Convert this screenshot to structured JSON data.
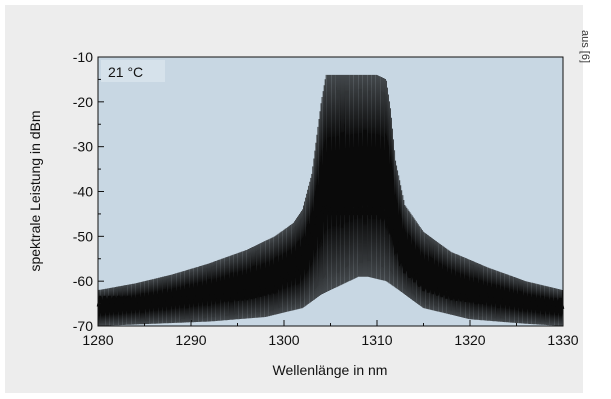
{
  "source_note": "aus [6]",
  "chart_data": {
    "type": "line",
    "title": "",
    "annotation": "21 °C",
    "xlabel": "Wellenlänge in nm",
    "ylabel": "spektrale Leistung in dBm",
    "xlim": [
      1280,
      1330
    ],
    "ylim": [
      -70,
      -10
    ],
    "x_ticks": [
      1280,
      1290,
      1300,
      1310,
      1320,
      1330
    ],
    "y_ticks": [
      -10,
      -20,
      -30,
      -40,
      -50,
      -60,
      -70
    ],
    "x_tick_labels": [
      "1280",
      "1290",
      "1300",
      "1310",
      "1320",
      "1330"
    ],
    "y_tick_labels": [
      "-10",
      "-20",
      "-30",
      "-40",
      "-50",
      "-60",
      "-70"
    ],
    "grid": false,
    "colors": {
      "plot_background": "#c8d7e3",
      "trace": "#0a0a0a"
    },
    "series": [
      {
        "role": "upper envelope",
        "x": [
          1280,
          1284,
          1288,
          1292,
          1296,
          1299,
          1301,
          1302,
          1303,
          1303.5,
          1304,
          1304.5,
          1310,
          1311,
          1311.5,
          1312,
          1313,
          1315,
          1318,
          1322,
          1326,
          1330
        ],
        "y": [
          -62,
          -60.5,
          -58.5,
          -56,
          -53,
          -50,
          -47,
          -44,
          -36,
          -28,
          -20,
          -14,
          -14,
          -15,
          -22,
          -33,
          -43,
          -49,
          -53.5,
          -57,
          -60,
          -62
        ]
      },
      {
        "role": "mean level",
        "x": [
          1280,
          1284,
          1288,
          1292,
          1296,
          1299,
          1301,
          1302,
          1303,
          1303.5,
          1304,
          1304.5,
          1310,
          1311,
          1311.5,
          1312,
          1313,
          1315,
          1318,
          1322,
          1326,
          1330
        ],
        "y": [
          -64.5,
          -64.5,
          -64,
          -63.5,
          -63,
          -61.5,
          -58,
          -53,
          -48,
          -46,
          -45,
          -44,
          -44,
          -46,
          -48,
          -52,
          -57,
          -61,
          -63,
          -64,
          -65,
          -65
        ]
      },
      {
        "role": "lower envelope",
        "x": [
          1280,
          1286,
          1292,
          1298,
          1302,
          1304,
          1306,
          1308,
          1309,
          1311,
          1313,
          1315,
          1320,
          1326,
          1330
        ],
        "y": [
          -70,
          -69.5,
          -69,
          -68,
          -66,
          -63,
          -61,
          -59,
          -59,
          -60,
          -63,
          -66,
          -68.5,
          -69.5,
          -70
        ]
      }
    ]
  }
}
